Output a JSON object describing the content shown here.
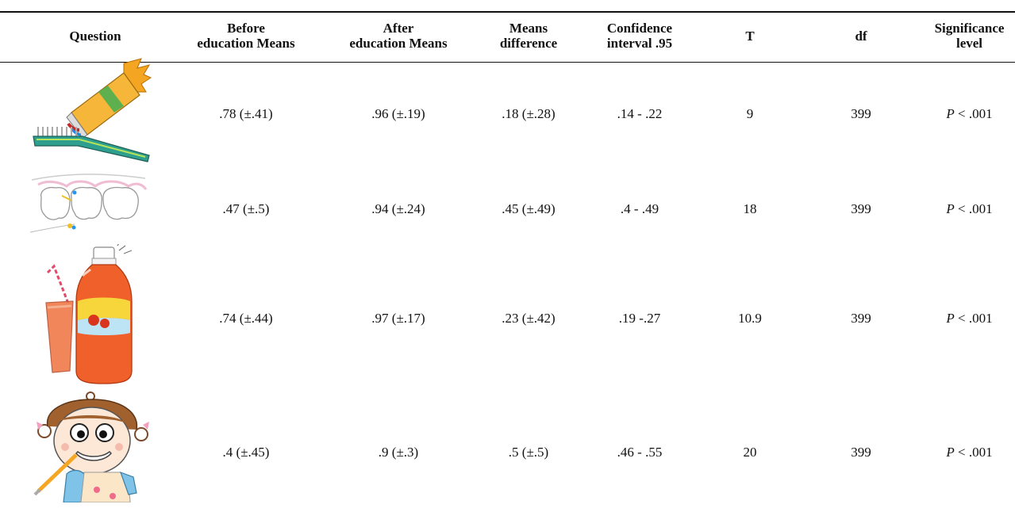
{
  "table": {
    "headers": {
      "question": "Question",
      "before_1": "Before",
      "before_2": "education Means",
      "after_1": "After",
      "after_2": "education Means",
      "diff_1": "Means",
      "diff_2": "difference",
      "ci_1": "Confidence",
      "ci_2": "interval .95",
      "t": "T",
      "df": "df",
      "sig_1": "Significance",
      "sig_2": "level"
    },
    "rows": [
      {
        "image": "toothbrush-toothpaste-icon",
        "before": ".78 (±.41)",
        "after": ".96 (±.19)",
        "diff": ".18 (±.28)",
        "ci": ".14 - .22",
        "t": "9",
        "df": "399",
        "p_symbol": "P",
        "p_value": " < .001"
      },
      {
        "image": "dental-floss-teeth-icon",
        "before": ".47 (±.5)",
        "after": ".94 (±.24)",
        "diff": ".45 (±.49)",
        "ci": ".4 - .49",
        "t": "18",
        "df": "399",
        "p_symbol": "P",
        "p_value": " < .001"
      },
      {
        "image": "soda-bottle-drink-icon",
        "before": ".74 (±.44)",
        "after": ".97 (±.17)",
        "diff": ".23 (±.42)",
        "ci": ".19 -.27",
        "t": "10.9",
        "df": "399",
        "p_symbol": "P",
        "p_value": " < .001"
      },
      {
        "image": "girl-brushing-teeth-icon",
        "before": ".4 (±.45)",
        "after": ".9 (±.3)",
        "diff": ".5 (±.5)",
        "ci": ".46 - .55",
        "t": "20",
        "df": "399",
        "p_symbol": "P",
        "p_value": " < .001"
      }
    ]
  }
}
